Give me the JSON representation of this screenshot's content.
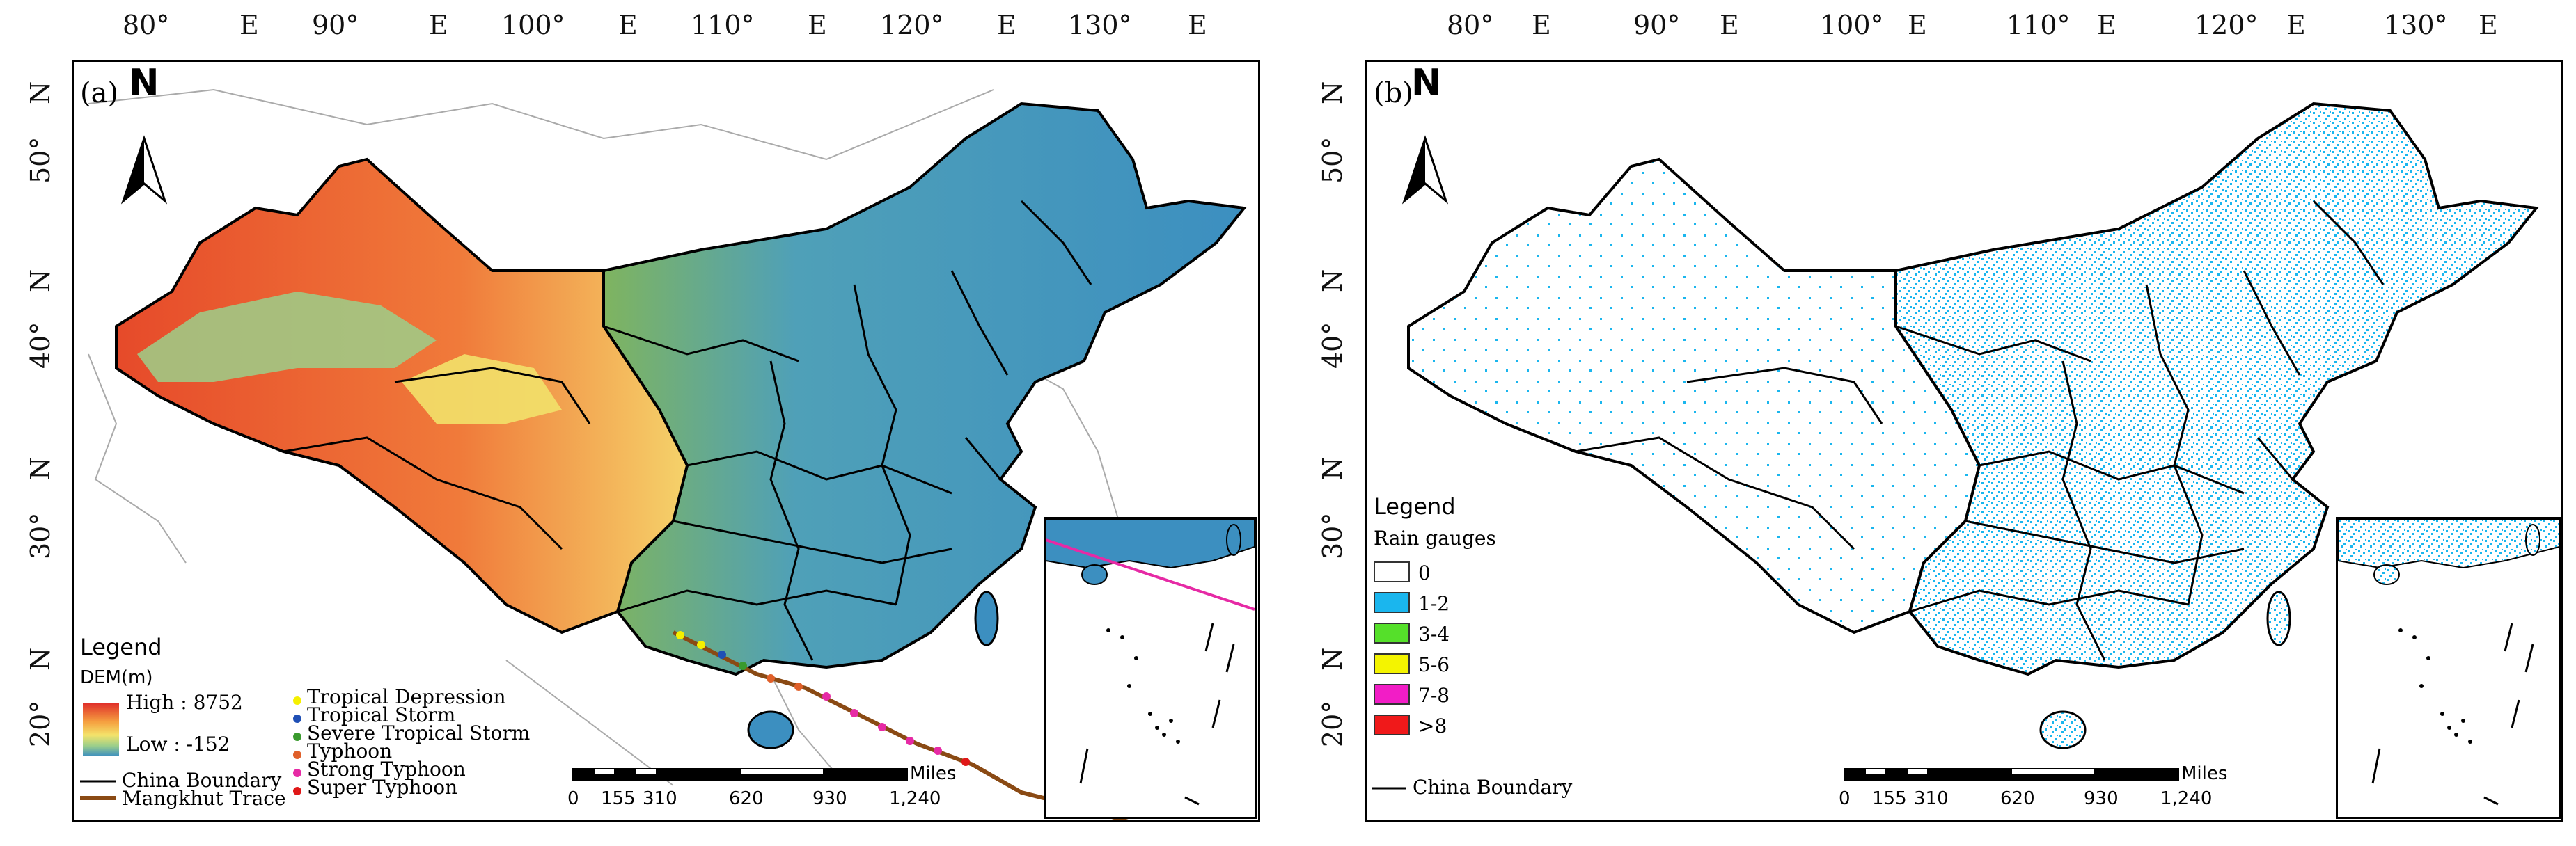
{
  "axes": {
    "lon_labels": [
      "80°",
      "90°",
      "100°",
      "110°",
      "120°",
      "130°"
    ],
    "lon_suffix": "E",
    "lat_labels": [
      "50°",
      "40°",
      "30°",
      "20°"
    ],
    "lat_suffix": "N"
  },
  "panel_a": {
    "letter": "(a)",
    "north": "N",
    "legend": {
      "title": "Legend",
      "dem_title": "DEM(m)",
      "high": "High : 8752",
      "low": "Low : -152",
      "boundary": "China Boundary",
      "trace": "Mangkhut Trace",
      "typhoon_levels": [
        {
          "label": "Tropical Depression",
          "color": "#f5f000"
        },
        {
          "label": "Tropical Storm",
          "color": "#1f4fb5"
        },
        {
          "label": "Severe Tropical Storm",
          "color": "#3a9a2e"
        },
        {
          "label": "Typhoon",
          "color": "#e0602a"
        },
        {
          "label": "Strong Typhoon",
          "color": "#e62aa5"
        },
        {
          "label": "Super Typhoon",
          "color": "#e01818"
        }
      ]
    },
    "scale": {
      "unit": "Miles",
      "ticks": [
        "0",
        "155",
        "310",
        "620",
        "930",
        "1,240"
      ]
    }
  },
  "panel_b": {
    "letter": "(b)",
    "north": "N",
    "legend": {
      "title": "Legend",
      "subtitle": "Rain gauges",
      "classes": [
        {
          "label": "0",
          "color": "#ffffff"
        },
        {
          "label": "1-2",
          "color": "#1ab6ee"
        },
        {
          "label": "3-4",
          "color": "#55e02a"
        },
        {
          "label": "5-6",
          "color": "#f4f400"
        },
        {
          "label": "7-8",
          "color": "#f21dc6"
        },
        {
          "label": ">8",
          "color": "#f0191a"
        }
      ],
      "boundary": "China Boundary"
    },
    "scale": {
      "unit": "Miles",
      "ticks": [
        "0",
        "155",
        "310",
        "620",
        "930",
        "1,240"
      ]
    }
  }
}
